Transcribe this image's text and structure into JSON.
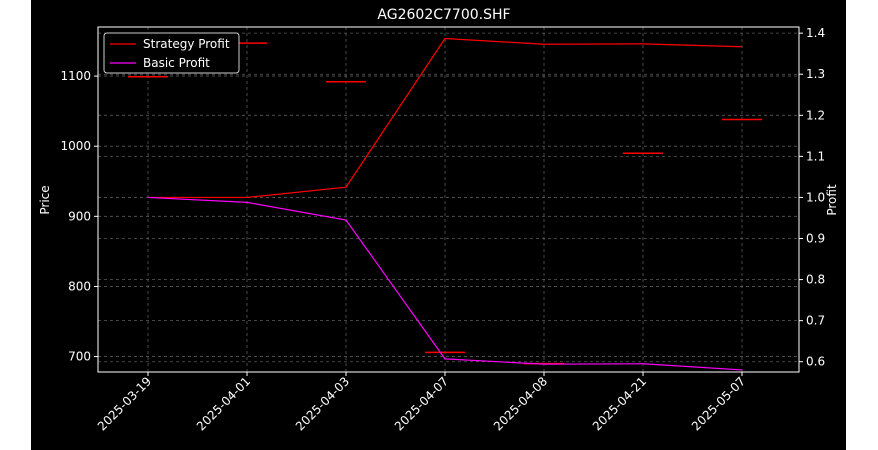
{
  "chart_data": {
    "type": "line",
    "title": "AG2602C7700.SHF",
    "categories": [
      "2025-03-19",
      "2025-04-01",
      "2025-04-03",
      "2025-04-07",
      "2025-04-08",
      "2025-04-21",
      "2025-05-07"
    ],
    "left_axis": {
      "label": "Price",
      "ylim": [
        678,
        1170
      ],
      "ticks": [
        700,
        800,
        900,
        1000,
        1100
      ]
    },
    "right_axis": {
      "label": "Profit",
      "ylim": [
        0.575,
        1.415
      ],
      "ticks": [
        0.6,
        0.7,
        0.8,
        0.9,
        1.0,
        1.1,
        1.2,
        1.3,
        1.4
      ]
    },
    "price_markers": {
      "values": [
        1099,
        1147,
        1092,
        706,
        690,
        990,
        1038
      ],
      "color": "#ff0000"
    },
    "series": [
      {
        "name": "Strategy Profit",
        "axis": "right",
        "color": "#ff0000",
        "values": [
          1.0,
          1.0,
          1.025,
          1.387,
          1.373,
          1.374,
          1.367
        ]
      },
      {
        "name": "Basic Profit",
        "axis": "right",
        "color": "#ff00ff",
        "values": [
          1.0,
          0.988,
          0.945,
          0.607,
          0.594,
          0.595,
          0.58
        ]
      }
    ],
    "grid": true,
    "legend_position": "top-left"
  }
}
